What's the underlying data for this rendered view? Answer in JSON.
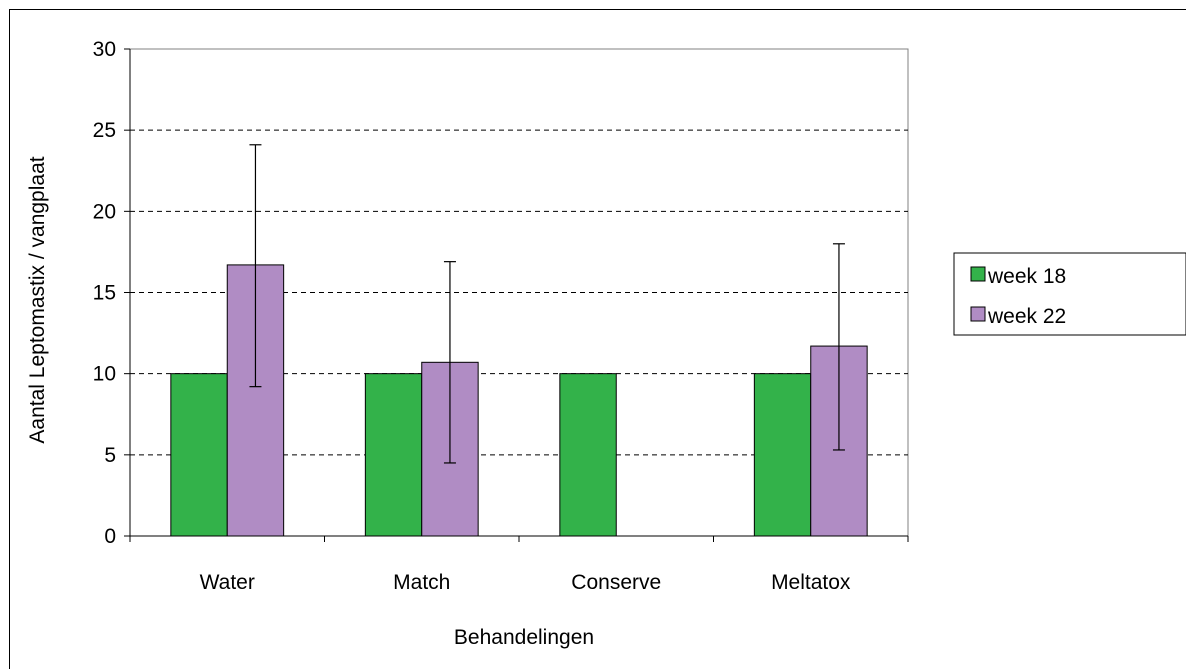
{
  "chart_data": {
    "type": "bar",
    "xlabel": "Behandelingen",
    "ylabel": "Aantal Leptomastix / vangplaat",
    "categories": [
      "Water",
      "Match",
      "Conserve",
      "Meltatox"
    ],
    "ylim": [
      0,
      30
    ],
    "yticks": [
      "0",
      "5",
      "10",
      "15",
      "20",
      "25",
      "30"
    ],
    "grid": "horizontal dashed",
    "legend_position": "right",
    "series": [
      {
        "name": "week 18",
        "color": "#33b24a",
        "values": [
          10,
          10,
          10,
          10
        ],
        "err_low": [
          null,
          null,
          null,
          null
        ],
        "err_high": [
          null,
          null,
          null,
          null
        ]
      },
      {
        "name": "week 22",
        "color": "#b08cc4",
        "values": [
          16.7,
          10.7,
          0,
          11.7
        ],
        "err_low": [
          9.2,
          4.5,
          null,
          5.3
        ],
        "err_high": [
          24.1,
          16.9,
          null,
          18.0
        ]
      }
    ]
  }
}
